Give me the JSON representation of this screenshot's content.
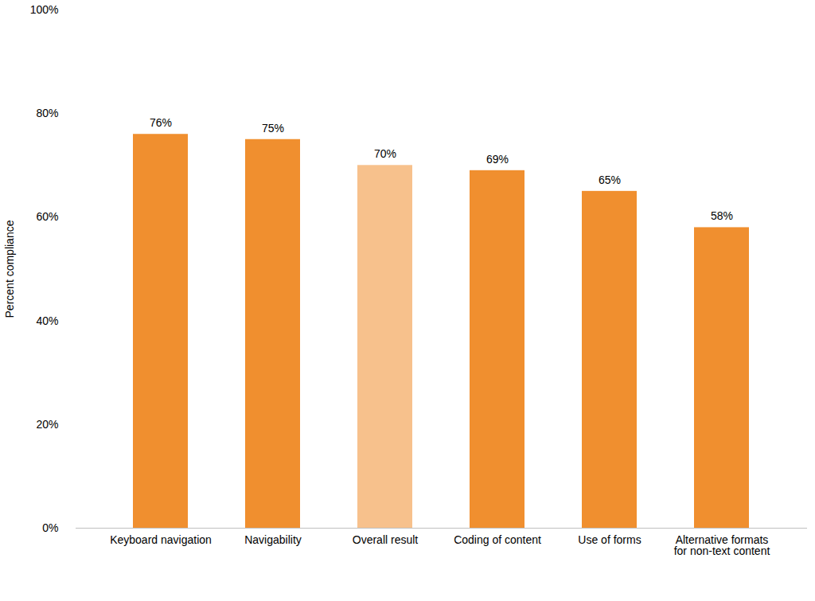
{
  "chart_data": {
    "type": "bar",
    "categories": [
      "Keyboard navigation",
      "Navigability",
      "Overall result",
      "Coding of content",
      "Use of forms",
      "Alternative formats for non-text content"
    ],
    "values": [
      76,
      75,
      70,
      69,
      65,
      58
    ],
    "value_labels": [
      "76%",
      "75%",
      "70%",
      "69%",
      "65%",
      "58%"
    ],
    "colors": [
      "#f08f2f",
      "#f08f2f",
      "#f7c18c",
      "#f08f2f",
      "#f08f2f",
      "#f08f2f"
    ],
    "y_label": "Percent compliance",
    "ylim": [
      0,
      100
    ],
    "yticks": [
      {
        "value": 0,
        "label": "0%"
      },
      {
        "value": 20,
        "label": "20%"
      },
      {
        "value": 40,
        "label": "40%"
      },
      {
        "value": 60,
        "label": "60%"
      },
      {
        "value": 80,
        "label": "80%"
      },
      {
        "value": 100,
        "label": "100%"
      }
    ],
    "grid": false,
    "data_labels": true
  }
}
